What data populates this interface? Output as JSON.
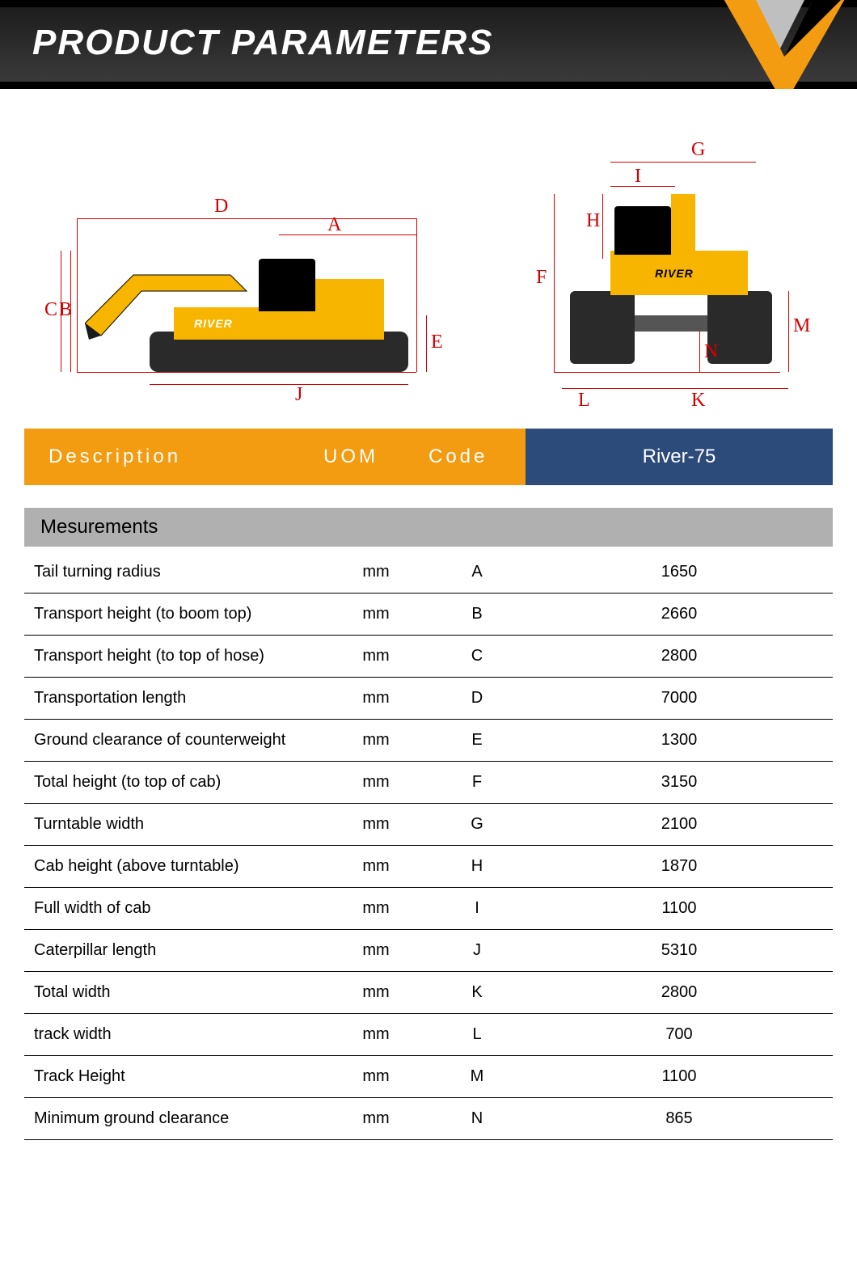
{
  "header": {
    "title": "PRODUCT PARAMETERS",
    "logo_colors": {
      "orange": "#f39c12",
      "gray": "#bfbfbf",
      "black": "#000000"
    }
  },
  "diagram": {
    "brand": "RIVER",
    "side_labels": [
      "A",
      "B",
      "C",
      "D",
      "E",
      "J"
    ],
    "front_labels": [
      "F",
      "G",
      "H",
      "I",
      "K",
      "L",
      "M",
      "N"
    ],
    "label_color": "#d40000",
    "label_font": "Times New Roman",
    "label_fontsize": 24,
    "machine_yellow": "#f7b500",
    "machine_black": "#1a1a1a",
    "track_gray": "#2a2a2a"
  },
  "table": {
    "header": {
      "description": "Description",
      "uom": "UOM",
      "code": "Code",
      "model": "River-75",
      "orange_bg": "#f39c12",
      "blue_bg": "#2c4a7a",
      "text_color": "#ffffff",
      "fontsize": 24
    },
    "section_title": "Mesurements",
    "section_bg": "#b0b0b0",
    "row_border": "#000000",
    "row_fontsize": 20,
    "rows": [
      {
        "desc": "Tail turning radius",
        "uom": "mm",
        "code": "A",
        "val": "1650"
      },
      {
        "desc": "Transport height (to boom top)",
        "uom": "mm",
        "code": "B",
        "val": "2660"
      },
      {
        "desc": "Transport height (to top of hose)",
        "uom": "mm",
        "code": "C",
        "val": "2800"
      },
      {
        "desc": "Transportation length",
        "uom": "mm",
        "code": "D",
        "val": "7000"
      },
      {
        "desc": "Ground clearance of counterweight",
        "uom": "mm",
        "code": "E",
        "val": "1300"
      },
      {
        "desc": "Total height (to top of cab)",
        "uom": "mm",
        "code": "F",
        "val": "3150"
      },
      {
        "desc": "Turntable width",
        "uom": "mm",
        "code": "G",
        "val": "2100"
      },
      {
        "desc": "Cab height (above turntable)",
        "uom": "mm",
        "code": "H",
        "val": "1870"
      },
      {
        "desc": "Full width of cab",
        "uom": "mm",
        "code": "I",
        "val": "1100"
      },
      {
        "desc": "Caterpillar length",
        "uom": "mm",
        "code": "J",
        "val": "5310"
      },
      {
        "desc": "Total width",
        "uom": "mm",
        "code": "K",
        "val": "2800"
      },
      {
        "desc": "track width",
        "uom": "mm",
        "code": "L",
        "val": "700"
      },
      {
        "desc": "Track Height",
        "uom": "mm",
        "code": "M",
        "val": "1100"
      },
      {
        "desc": "Minimum ground clearance",
        "uom": "mm",
        "code": "N",
        "val": "865"
      }
    ]
  }
}
